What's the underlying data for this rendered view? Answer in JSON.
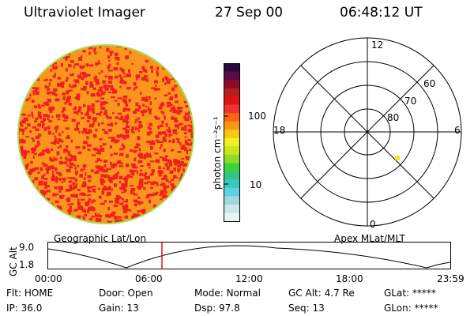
{
  "header": {
    "title": "Ultraviolet Imager",
    "date": "27 Sep 00",
    "time": "06:48:12 UT"
  },
  "colorbar": {
    "unit_label": "photon cm⁻²s⁻¹",
    "tick_100": "100",
    "tick_10": "10",
    "colors": [
      "#e8f4f4",
      "#c8e8ec",
      "#a0d8e0",
      "#5ed2e0",
      "#38c8c0",
      "#30c880",
      "#3cd23c",
      "#8cdc28",
      "#c8e61e",
      "#f0f028",
      "#f5c814",
      "#fa9614",
      "#fa6414",
      "#f03232",
      "#dc1414",
      "#b41e1e",
      "#8c0a28",
      "#5a0a46",
      "#280a3c"
    ]
  },
  "image": {
    "base_color": "#fa961e",
    "speckle_color": "#f01e1e",
    "rim_color": "#a0e050"
  },
  "polar": {
    "mlt_12": "12",
    "mlt_18": "18",
    "mlt_6": "6",
    "mlt_0": "0",
    "lat_60": "60",
    "lat_70": "70",
    "lat_80": "80",
    "marker_color": "#e6e628"
  },
  "timeline": {
    "left_label": "Geographic Lat/Lon",
    "right_label": "Apex MLat/MLT",
    "axis_label": "GC Alt",
    "y_top": "9.0",
    "y_bottom": "1.8",
    "ticks": [
      "00:00",
      "06:00",
      "12:00",
      "18:00",
      "23:59"
    ],
    "cursor_color": "#dc1414"
  },
  "status": {
    "row1": [
      {
        "key": "Flt:",
        "value": "HOME"
      },
      {
        "key": "Door:",
        "value": "Open"
      },
      {
        "key": "Mode:",
        "value": "Normal"
      },
      {
        "key": "GC Alt:",
        "value": "4.7 Re"
      },
      {
        "key": "GLat:",
        "value": "*****"
      }
    ],
    "row2": [
      {
        "key": "IP:",
        "value": "36.0"
      },
      {
        "key": "Gain:",
        "value": "13"
      },
      {
        "key": "Dsp:",
        "value": "97.8"
      },
      {
        "key": "Seq:",
        "value": "13"
      },
      {
        "key": "GLon:",
        "value": "*****"
      }
    ]
  }
}
